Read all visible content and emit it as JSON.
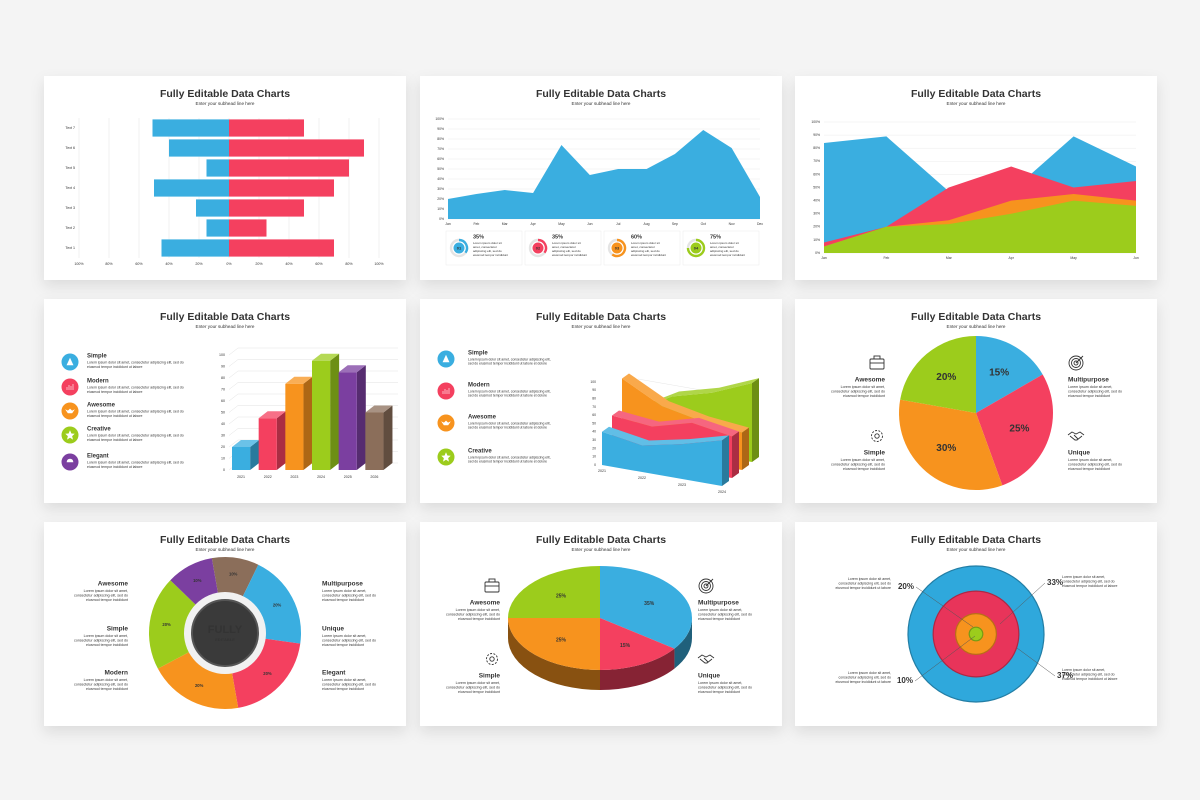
{
  "slides": [
    {
      "title": "Fully Editable Data Charts",
      "subtitle": "Enter your subhead line here",
      "chart": {
        "type": "butterfly",
        "categories": [
          "Text 1",
          "Text 2",
          "Text 3",
          "Text 4",
          "Text 5",
          "Text 6",
          "Text 7"
        ],
        "series": [
          {
            "color": "#3aaee0",
            "values": [
              -45,
              -15,
              -22,
              -50,
              -15,
              -40,
              -51
            ]
          },
          {
            "color": "#f4405f",
            "values": [
              70,
              25,
              50,
              70,
              80,
              90,
              50
            ]
          }
        ],
        "xlim": [
          -100,
          100
        ],
        "xticks": [
          {
            "value": -100,
            "label": "100%"
          },
          {
            "value": -80,
            "label": "80%"
          },
          {
            "value": -60,
            "label": "60%"
          },
          {
            "value": -40,
            "label": "40%"
          },
          {
            "value": -20,
            "label": "20%"
          },
          {
            "value": 0,
            "label": "0%"
          },
          {
            "value": 20,
            "label": "20%"
          },
          {
            "value": 40,
            "label": "40%"
          },
          {
            "value": 60,
            "label": "60%"
          },
          {
            "value": 80,
            "label": "80%"
          },
          {
            "value": 100,
            "label": "100%"
          }
        ],
        "grid": true
      }
    },
    {
      "title": "Fully Editable Data Charts",
      "subtitle": "Enter your subhead line here",
      "chart": {
        "type": "area",
        "categories": [
          "Jan",
          "Feb",
          "Mar",
          "Apr",
          "May",
          "Jun",
          "Jul",
          "Aug",
          "Sep",
          "Oct",
          "Nov",
          "Dec"
        ],
        "values": [
          20,
          25,
          29,
          26,
          74,
          44,
          50,
          50,
          65,
          89,
          71,
          22
        ],
        "color": "#3aaee0",
        "ylim": [
          0,
          100
        ],
        "yticks": [
          {
            "value": 0,
            "label": "0%"
          },
          {
            "value": 10,
            "label": "10%"
          },
          {
            "value": 20,
            "label": "20%"
          },
          {
            "value": 30,
            "label": "30%"
          },
          {
            "value": 40,
            "label": "40%"
          },
          {
            "value": 50,
            "label": "50%"
          },
          {
            "value": 60,
            "label": "60%"
          },
          {
            "value": 70,
            "label": "70%"
          },
          {
            "value": 80,
            "label": "80%"
          },
          {
            "value": 90,
            "label": "90%"
          },
          {
            "value": 100,
            "label": "100%"
          }
        ],
        "grid": true,
        "cards": [
          {
            "label": "01",
            "value": 35,
            "value_label": "35%",
            "color": "#3aaee0",
            "text": [
              "Lorem ipsum dolor sit",
              "amet, consectetur",
              "adipiscing elit, sed do",
              "eiusmod tempor incididunt"
            ]
          },
          {
            "label": "02",
            "value": 35,
            "value_label": "35%",
            "color": "#f4405f",
            "text": [
              "Lorem ipsum dolor sit",
              "amet, consectetur",
              "adipiscing elit, sed do",
              "eiusmod tempor incididunt"
            ]
          },
          {
            "label": "03",
            "value": 60,
            "value_label": "60%",
            "color": "#f7931e",
            "text": [
              "Lorem ipsum dolor sit",
              "amet, consectetur",
              "adipiscing elit, sed do",
              "eiusmod tempor incididunt"
            ]
          },
          {
            "label": "04",
            "value": 75,
            "value_label": "75%",
            "color": "#9ccc1c",
            "text": [
              "Lorem ipsum dolor sit",
              "amet, consectetur",
              "adipiscing elit, sed do",
              "eiusmod tempor incididunt"
            ]
          }
        ]
      }
    },
    {
      "title": "Fully Editable Data Charts",
      "subtitle": "Enter your subhead line here",
      "chart": {
        "type": "area",
        "categories": [
          "Jan",
          "Feb",
          "Mar",
          "Apr",
          "May",
          "Jun"
        ],
        "series": [
          {
            "color": "#3aaee0",
            "values": [
              84,
              89,
              47,
              47,
              89,
              66
            ]
          },
          {
            "color": "#f4405f",
            "values": [
              8,
              20,
              50,
              66,
              50,
              55
            ]
          },
          {
            "color": "#f7931e",
            "values": [
              5,
              20,
              25,
              40,
              45,
              40
            ]
          },
          {
            "color": "#9ccc1c",
            "values": [
              5,
              20,
              22,
              30,
              40,
              36
            ]
          }
        ],
        "ylim": [
          0,
          100
        ],
        "yticks": [
          {
            "value": 0,
            "label": "0%"
          },
          {
            "value": 10,
            "label": "10%"
          },
          {
            "value": 20,
            "label": "20%"
          },
          {
            "value": 30,
            "label": "30%"
          },
          {
            "value": 40,
            "label": "40%"
          },
          {
            "value": 50,
            "label": "50%"
          },
          {
            "value": 60,
            "label": "60%"
          },
          {
            "value": 70,
            "label": "70%"
          },
          {
            "value": 80,
            "label": "80%"
          },
          {
            "value": 90,
            "label": "90%"
          },
          {
            "value": 100,
            "label": "100%"
          }
        ],
        "grid": true
      }
    },
    {
      "title": "Fully Editable Data Charts",
      "subtitle": "Enter your subhead line here",
      "items": [
        {
          "title": "Simple",
          "color": "#3aaee0",
          "text": [
            "Lorem ipsum dolor sit amet, consectetur adipiscing elit, sed do",
            "eiusmod tempor incididunt ut labore"
          ]
        },
        {
          "title": "Modern",
          "color": "#f4405f",
          "text": [
            "Lorem ipsum dolor sit amet, consectetur adipiscing elit, sed do",
            "eiusmod tempor incididunt ut labore"
          ]
        },
        {
          "title": "Awesome",
          "color": "#f7931e",
          "text": [
            "Lorem ipsum dolor sit amet, consectetur adipiscing elit, sed do",
            "eiusmod tempor incididunt ut labore"
          ]
        },
        {
          "title": "Creative",
          "color": "#9ccc1c",
          "text": [
            "Lorem ipsum dolor sit amet, consectetur adipiscing elit, sed do",
            "eiusmod tempor incididunt ut labore"
          ]
        },
        {
          "title": "Elegant",
          "color": "#7b3fa0",
          "text": [
            "Lorem ipsum dolor sit amet, consectetur adipiscing elit, sed do",
            "eiusmod tempor incididunt ut labore"
          ]
        }
      ],
      "chart": {
        "type": "bar3d",
        "categories": [
          "2021",
          "2022",
          "2023",
          "2024",
          "2025",
          "2026"
        ],
        "values": [
          20,
          45,
          75,
          95,
          85,
          50
        ],
        "colors": [
          "#3aaee0",
          "#f4405f",
          "#f7931e",
          "#9ccc1c",
          "#7b3fa0",
          "#8b6e5a"
        ],
        "ylim": [
          0,
          100
        ],
        "yticks": [
          0,
          10,
          20,
          30,
          40,
          50,
          60,
          70,
          80,
          90,
          100
        ],
        "grid": true
      }
    },
    {
      "title": "Fully Editable Data Charts",
      "subtitle": "Enter your subhead line here",
      "items": [
        {
          "title": "Simple",
          "color": "#3aaee0",
          "text": [
            "Lorem ipsum dolor sit amet, consectetur adipiscing elit,",
            "sed do eiusmod tempor incididunt ut labore et dolore"
          ]
        },
        {
          "title": "Modern",
          "color": "#f4405f",
          "text": [
            "Lorem ipsum dolor sit amet, consectetur adipiscing elit,",
            "sed do eiusmod tempor incididunt ut labore et dolore"
          ]
        },
        {
          "title": "Awesome",
          "color": "#f7931e",
          "text": [
            "Lorem ipsum dolor sit amet, consectetur adipiscing elit,",
            "sed do eiusmod tempor incididunt ut labore et dolore"
          ]
        },
        {
          "title": "Creative",
          "color": "#9ccc1c",
          "text": [
            "Lorem ipsum dolor sit amet, consectetur adipiscing elit,",
            "sed do eiusmod tempor incididunt ut labore et dolore"
          ]
        }
      ],
      "chart": {
        "type": "ribbon3d",
        "categories": [
          "2021",
          "2022",
          "2023",
          "2024"
        ],
        "series": [
          {
            "color": "#3aaee0",
            "values": [
              40,
              32,
              42,
              55
            ]
          },
          {
            "color": "#f4405f",
            "values": [
              50,
              45,
              58,
              50
            ]
          },
          {
            "color": "#f7931e",
            "values": [
              85,
              60,
              50,
              45
            ]
          },
          {
            "color": "#9ccc1c",
            "values": [
              35,
              62,
              75,
              95
            ]
          }
        ],
        "ylim": [
          0,
          100
        ],
        "yticks": [
          0,
          10,
          20,
          30,
          40,
          50,
          60,
          70,
          80,
          90,
          100
        ]
      }
    },
    {
      "title": "Fully Editable Data Charts",
      "subtitle": "Enter your subhead line here",
      "items": [
        {
          "title": "Awesome",
          "text": [
            "Lorem ipsum dolor sit amet,",
            "consectetur adipiscing elit, sed do",
            "eiusmod tempor incididunt"
          ]
        },
        {
          "title": "Simple",
          "text": [
            "Lorem ipsum dolor sit amet,",
            "consectetur adipiscing elit, sed do",
            "eiusmod tempor incididunt"
          ]
        },
        {
          "title": "Multipurpose",
          "text": [
            "Lorem ipsum dolor sit amet,",
            "consectetur adipiscing elit, sed do",
            "eiusmod tempor incididunt"
          ]
        },
        {
          "title": "Unique",
          "text": [
            "Lorem ipsum dolor sit amet,",
            "consectetur adipiscing elit, sed do",
            "eiusmod tempor incididunt"
          ]
        }
      ],
      "chart": {
        "type": "pie",
        "values": [
          15,
          25,
          30,
          20
        ],
        "value_labels": [
          "15%",
          "25%",
          "30%",
          "20%"
        ],
        "colors": [
          "#3aaee0",
          "#f4405f",
          "#f7931e",
          "#9ccc1c"
        ]
      }
    },
    {
      "title": "Fully Editable Data Charts",
      "subtitle": "Enter your subhead line here",
      "items": [
        {
          "title": "Awesome",
          "color": "#7b3fa0",
          "text": [
            "Lorem ipsum dolor sit amet,",
            "consectetur adipiscing elit, sed do",
            "eiusmod tempor incididunt"
          ]
        },
        {
          "title": "Simple",
          "color": "#9ccc1c",
          "text": [
            "Lorem ipsum dolor sit amet,",
            "consectetur adipiscing elit, sed do",
            "eiusmod tempor incididunt"
          ]
        },
        {
          "title": "Modern",
          "color": "#f7931e",
          "text": [
            "Lorem ipsum dolor sit amet,",
            "consectetur adipiscing elit, sed do",
            "eiusmod tempor incididunt"
          ]
        },
        {
          "title": "Multipurpose",
          "color": "#8b6e5a",
          "text": [
            "Lorem ipsum dolor sit amet,",
            "consectetur adipiscing elit, sed do",
            "eiusmod tempor incididunt"
          ]
        },
        {
          "title": "Unique",
          "color": "#3aaee0",
          "text": [
            "Lorem ipsum dolor sit amet,",
            "consectetur adipiscing elit, sed do",
            "eiusmod tempor incididunt"
          ]
        },
        {
          "title": "Elegant",
          "color": "#f4405f",
          "text": [
            "Lorem ipsum dolor sit amet,",
            "consectetur adipiscing elit, sed do",
            "eiusmod tempor incididunt"
          ]
        }
      ],
      "chart": {
        "type": "donut",
        "values": [
          10,
          20,
          20,
          20,
          20,
          10
        ],
        "value_labels": [
          "10%",
          "20%",
          "20%",
          "20%",
          "20%",
          "10%"
        ],
        "colors": [
          "#8b6e5a",
          "#3aaee0",
          "#f4405f",
          "#f7931e",
          "#9ccc1c",
          "#7b3fa0"
        ],
        "center_title": "FULLY",
        "center_subtitle": "EDITABLE"
      }
    },
    {
      "title": "Fully Editable Data Charts",
      "subtitle": "Enter your subhead line here",
      "items": [
        {
          "title": "Awesome",
          "text": [
            "Lorem ipsum dolor sit amet,",
            "consectetur adipiscing elit, sed do",
            "eiusmod tempor incididunt"
          ]
        },
        {
          "title": "Simple",
          "text": [
            "Lorem ipsum dolor sit amet,",
            "consectetur adipiscing elit, sed do",
            "eiusmod tempor incididunt"
          ]
        },
        {
          "title": "Multipurpose",
          "text": [
            "Lorem ipsum dolor sit amet,",
            "consectetur adipiscing elit, sed do",
            "eiusmod tempor incididunt"
          ]
        },
        {
          "title": "Unique",
          "text": [
            "Lorem ipsum dolor sit amet,",
            "consectetur adipiscing elit, sed do",
            "eiusmod tempor incididunt"
          ]
        }
      ],
      "chart": {
        "type": "pie3d",
        "values": [
          35,
          15,
          25,
          25
        ],
        "value_labels": [
          "35%",
          "15%",
          "25%",
          "25%"
        ],
        "colors": [
          "#3aaee0",
          "#f4405f",
          "#f7931e",
          "#9ccc1c"
        ]
      }
    },
    {
      "title": "Fully Editable Data Charts",
      "subtitle": "Enter your subhead line here",
      "items": [
        {
          "text": [
            "Lorem ipsum dolor sit amet,",
            "consectetur adipiscing elit, sed do",
            "eiusmod tempor incididunt ut labore"
          ]
        },
        {
          "text": [
            "Lorem ipsum dolor sit amet,",
            "consectetur adipiscing elit, sed do",
            "eiusmod tempor incididunt ut labore"
          ]
        },
        {
          "text": [
            "Lorem ipsum dolor sit amet,",
            "consectetur adipiscing elit, sed do",
            "eiusmod tempor incididunt ut labore"
          ]
        },
        {
          "text": [
            "Lorem ipsum dolor sit amet,",
            "consectetur adipiscing elit, sed do",
            "eiusmod tempor incididunt ut labore"
          ]
        }
      ],
      "chart": {
        "type": "rings",
        "values": [
          37,
          33,
          20,
          10
        ],
        "value_labels": [
          "37%",
          "33%",
          "20%",
          "10%"
        ],
        "colors": [
          "#2fa8dc",
          "#e8345a",
          "#f7931e",
          "#9ccc1c"
        ]
      }
    }
  ]
}
